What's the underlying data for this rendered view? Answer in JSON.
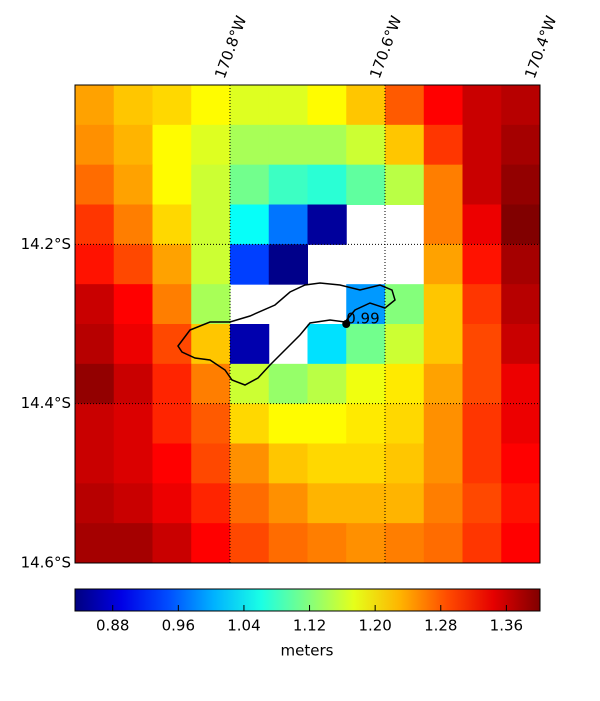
{
  "chart_data": {
    "type": "heatmap",
    "colormap": "jet",
    "clim": [
      0.834,
      1.401
    ],
    "xlim": [
      -171.0,
      -170.4
    ],
    "ylim": [
      -14.0,
      -14.6
    ],
    "xticks": [
      {
        "value": -170.8,
        "label": "170.8°W"
      },
      {
        "value": -170.6,
        "label": "170.6°W"
      },
      {
        "value": -170.4,
        "label": "170.4°W"
      }
    ],
    "yticks": [
      {
        "value": -14.2,
        "label": "14.2°S"
      },
      {
        "value": -14.4,
        "label": "14.4°S"
      },
      {
        "value": -14.6,
        "label": "14.6°S"
      }
    ],
    "grid": true,
    "values": [
      [
        1.24,
        1.22,
        1.21,
        1.19,
        1.17,
        1.17,
        1.19,
        1.22,
        1.28,
        1.33,
        1.36,
        1.37
      ],
      [
        1.25,
        1.23,
        1.19,
        1.17,
        1.14,
        1.14,
        1.14,
        1.16,
        1.22,
        1.3,
        1.36,
        1.38
      ],
      [
        1.27,
        1.24,
        1.19,
        1.16,
        1.11,
        1.08,
        1.07,
        1.1,
        1.15,
        1.26,
        1.36,
        1.39
      ],
      [
        1.3,
        1.26,
        1.21,
        1.16,
        1.05,
        0.97,
        0.85,
        null,
        null,
        1.26,
        1.34,
        1.4
      ],
      [
        1.32,
        1.29,
        1.24,
        1.16,
        0.94,
        0.84,
        null,
        null,
        null,
        1.24,
        1.32,
        1.38
      ],
      [
        1.36,
        1.33,
        1.26,
        1.14,
        null,
        null,
        null,
        0.99,
        1.12,
        1.22,
        1.3,
        1.37
      ],
      [
        1.37,
        1.34,
        1.29,
        1.22,
        0.86,
        null,
        1.03,
        1.11,
        1.16,
        1.22,
        1.29,
        1.36
      ],
      [
        1.39,
        1.36,
        1.31,
        1.26,
        1.16,
        1.13,
        1.15,
        1.18,
        1.2,
        1.24,
        1.29,
        1.34
      ],
      [
        1.36,
        1.35,
        1.31,
        1.28,
        1.21,
        1.19,
        1.19,
        1.2,
        1.21,
        1.25,
        1.3,
        1.34
      ],
      [
        1.36,
        1.35,
        1.33,
        1.29,
        1.25,
        1.22,
        1.21,
        1.21,
        1.22,
        1.25,
        1.3,
        1.33
      ],
      [
        1.37,
        1.36,
        1.34,
        1.31,
        1.27,
        1.25,
        1.23,
        1.23,
        1.23,
        1.26,
        1.29,
        1.32
      ],
      [
        1.38,
        1.38,
        1.36,
        1.33,
        1.29,
        1.27,
        1.26,
        1.25,
        1.26,
        1.27,
        1.3,
        1.33
      ]
    ],
    "marker": {
      "lon": -170.65,
      "lat": -14.3,
      "value": 0.99
    },
    "colorbar": {
      "label": "meters",
      "ticks": [
        0.88,
        0.96,
        1.04,
        {
          "value": 1.2,
          "label": "1.20"
        },
        1.12,
        1.28,
        1.36
      ]
    }
  }
}
